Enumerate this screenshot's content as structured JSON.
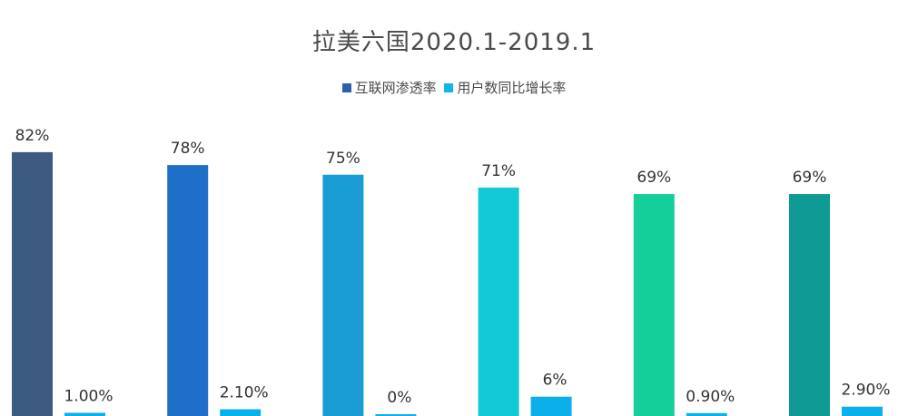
{
  "chart_data": {
    "type": "bar",
    "title": "拉美六国2020.1-2019.1",
    "xlabel": "",
    "ylabel": "",
    "categories": [
      "",
      "",
      "",
      "",
      "",
      ""
    ],
    "series": [
      {
        "name": "互联网渗透率",
        "values": [
          82,
          78,
          75,
          71,
          69,
          69
        ],
        "labels": [
          "82%",
          "78%",
          "75%",
          "71%",
          "69%",
          "69%"
        ],
        "colors": [
          "#3d5a80",
          "#1f6fc8",
          "#1a9cd4",
          "#12c9d6",
          "#14cf9a",
          "#0f9a96"
        ]
      },
      {
        "name": "用户数同比增长率",
        "values": [
          1.0,
          2.1,
          0,
          6,
          0.9,
          2.9
        ],
        "labels": [
          "1.00%",
          "2.10%",
          "0%",
          "6%",
          "0.90%",
          "2.90%"
        ],
        "colors": [
          "#0bb0ea",
          "#0bb0ea",
          "#0bb0ea",
          "#0bb0ea",
          "#0bb0ea",
          "#0bb0ea"
        ]
      }
    ],
    "legend": [
      {
        "label": "互联网渗透率",
        "color": "#2f5fa8"
      },
      {
        "label": "用户数同比增长率",
        "color": "#12b4ec"
      }
    ],
    "legend_position": "top",
    "grid": false
  }
}
